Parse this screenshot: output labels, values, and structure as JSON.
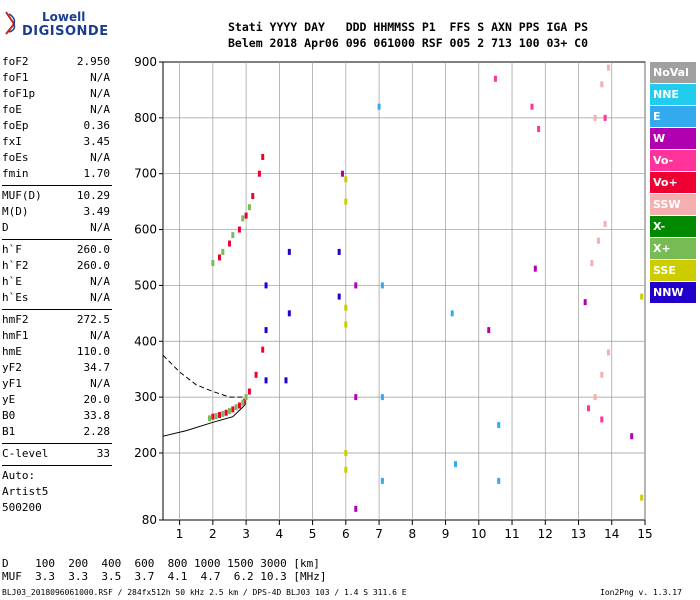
{
  "logo": {
    "line1": "Lowell",
    "line2": "DIGISONDE"
  },
  "header": {
    "labels": "Stati YYYY DAY   DDD HHMMSS P1  FFS S AXN PPS IGA PS",
    "values": "Belem 2018 Apr06 096 061000 RSF 005 2 713 100 03+ C0"
  },
  "params": {
    "group1": [
      {
        "name": "foF2",
        "value": "2.950"
      },
      {
        "name": "foF1",
        "value": "N/A"
      },
      {
        "name": "foF1p",
        "value": "N/A"
      },
      {
        "name": "foE",
        "value": "N/A"
      },
      {
        "name": "foEp",
        "value": "0.36"
      },
      {
        "name": "fxI",
        "value": "3.45"
      },
      {
        "name": "foEs",
        "value": "N/A"
      },
      {
        "name": "fmin",
        "value": "1.70"
      }
    ],
    "group2": [
      {
        "name": "MUF(D)",
        "value": "10.29"
      },
      {
        "name": "M(D)",
        "value": "3.49"
      },
      {
        "name": "D",
        "value": "N/A"
      }
    ],
    "group3": [
      {
        "name": "h`F",
        "value": "260.0"
      },
      {
        "name": "h`F2",
        "value": "260.0"
      },
      {
        "name": "h`E",
        "value": "N/A"
      },
      {
        "name": "h`Es",
        "value": "N/A"
      }
    ],
    "group4": [
      {
        "name": "hmF2",
        "value": "272.5"
      },
      {
        "name": "hmF1",
        "value": "N/A"
      },
      {
        "name": "hmE",
        "value": "110.0"
      },
      {
        "name": "yF2",
        "value": "34.7"
      },
      {
        "name": "yF1",
        "value": "N/A"
      },
      {
        "name": "yE",
        "value": "20.0"
      },
      {
        "name": "B0",
        "value": "33.8"
      },
      {
        "name": "B1",
        "value": "2.28"
      }
    ],
    "group5": [
      {
        "name": "C-level",
        "value": "33"
      }
    ],
    "group6": [
      {
        "name": "Auto:",
        "value": ""
      },
      {
        "name": "Artist5",
        "value": ""
      },
      {
        "name": "500200",
        "value": ""
      }
    ]
  },
  "legend": [
    {
      "label": "NoVal",
      "color": "#a0a0a0"
    },
    {
      "label": "NNE",
      "color": "#22ccee"
    },
    {
      "label": "E",
      "color": "#33aaee"
    },
    {
      "label": "W",
      "color": "#b000b0"
    },
    {
      "label": "Vo-",
      "color": "#ff3399"
    },
    {
      "label": "Vo+",
      "color": "#ee0033"
    },
    {
      "label": "SSW",
      "color": "#f4b0b0"
    },
    {
      "label": "X-",
      "color": "#008800"
    },
    {
      "label": "X+",
      "color": "#77bb55"
    },
    {
      "label": "SSE",
      "color": "#cccc00"
    },
    {
      "label": "NNW",
      "color": "#2200cc"
    }
  ],
  "dm_table": {
    "d_row": "D    100  200  400  600  800 1000 1500 3000 [km]",
    "muf_row": "MUF  3.3  3.3  3.5  3.7  4.1  4.7  6.2 10.3 [MHz]"
  },
  "footer": {
    "left": "BLJ03_2018096061000.RSF / 284fx512h 50 kHz 2.5 km / DPS-4D BLJ03 103 / 1.4 S 311.6 E",
    "right": "Ion2Png v. 1.3.17"
  },
  "chart_data": {
    "type": "scatter",
    "title": "",
    "xlabel": "",
    "ylabel": "",
    "xlim": [
      0.5,
      15
    ],
    "ylim": [
      80,
      900
    ],
    "x_ticks": [
      1,
      2,
      3,
      4,
      5,
      6,
      7,
      8,
      9,
      10,
      11,
      12,
      13,
      14,
      15
    ],
    "y_ticks": [
      80,
      200,
      300,
      400,
      500,
      600,
      700,
      800,
      900
    ],
    "x_unit": "MHz",
    "y_unit": "km",
    "grid": true,
    "traces": [
      {
        "name": "Vo+",
        "color": "#ee0033",
        "points": [
          [
            2.0,
            265
          ],
          [
            2.2,
            268
          ],
          [
            2.4,
            272
          ],
          [
            2.6,
            278
          ],
          [
            2.8,
            285
          ],
          [
            2.95,
            292
          ],
          [
            3.1,
            310
          ],
          [
            3.3,
            340
          ],
          [
            3.5,
            385
          ]
        ]
      },
      {
        "name": "X+",
        "color": "#77bb55",
        "points": [
          [
            1.9,
            262
          ],
          [
            2.1,
            266
          ],
          [
            2.3,
            270
          ],
          [
            2.5,
            275
          ],
          [
            2.7,
            282
          ],
          [
            2.9,
            290
          ],
          [
            3.0,
            300
          ]
        ]
      },
      {
        "name": "Vo+",
        "color": "#ee0033",
        "points": [
          [
            2.2,
            550
          ],
          [
            2.5,
            575
          ],
          [
            2.8,
            600
          ],
          [
            3.0,
            625
          ],
          [
            3.2,
            660
          ],
          [
            3.4,
            700
          ],
          [
            3.5,
            730
          ]
        ]
      },
      {
        "name": "X+",
        "color": "#77bb55",
        "points": [
          [
            2.0,
            540
          ],
          [
            2.3,
            560
          ],
          [
            2.6,
            590
          ],
          [
            2.9,
            620
          ],
          [
            3.1,
            640
          ]
        ]
      },
      {
        "name": "SSW",
        "color": "#f4b0b0",
        "points": [
          [
            13.5,
            800
          ],
          [
            13.7,
            860
          ],
          [
            13.9,
            890
          ],
          [
            13.4,
            540
          ],
          [
            13.6,
            580
          ],
          [
            13.8,
            610
          ],
          [
            13.5,
            300
          ],
          [
            13.7,
            340
          ],
          [
            13.9,
            380
          ]
        ]
      },
      {
        "name": "NNW",
        "color": "#2200cc",
        "points": [
          [
            3.6,
            330
          ],
          [
            3.6,
            420
          ],
          [
            3.6,
            500
          ],
          [
            4.2,
            330
          ],
          [
            4.3,
            450
          ],
          [
            4.3,
            560
          ],
          [
            5.8,
            480
          ],
          [
            5.8,
            560
          ]
        ]
      },
      {
        "name": "SSE",
        "color": "#cccc00",
        "points": [
          [
            6.0,
            170
          ],
          [
            6.0,
            200
          ],
          [
            6.0,
            430
          ],
          [
            6.0,
            460
          ],
          [
            6.0,
            650
          ],
          [
            6.0,
            690
          ],
          [
            14.9,
            120
          ],
          [
            14.9,
            480
          ]
        ]
      },
      {
        "name": "E",
        "color": "#33aaee",
        "points": [
          [
            7.1,
            150
          ],
          [
            7.1,
            300
          ],
          [
            7.1,
            500
          ],
          [
            7.0,
            820
          ],
          [
            9.3,
            180
          ],
          [
            9.2,
            450
          ],
          [
            10.6,
            150
          ],
          [
            10.6,
            250
          ]
        ]
      },
      {
        "name": "W",
        "color": "#b000b0",
        "points": [
          [
            6.3,
            100
          ],
          [
            6.3,
            300
          ],
          [
            6.3,
            500
          ],
          [
            5.9,
            700
          ],
          [
            10.3,
            420
          ],
          [
            11.7,
            530
          ],
          [
            13.2,
            470
          ],
          [
            14.6,
            230
          ]
        ]
      },
      {
        "name": "Vo-",
        "color": "#ff3399",
        "points": [
          [
            11.6,
            820
          ],
          [
            11.8,
            780
          ],
          [
            13.3,
            280
          ],
          [
            13.7,
            260
          ],
          [
            13.8,
            800
          ],
          [
            10.5,
            870
          ]
        ]
      }
    ],
    "model_curves": [
      {
        "style": "dashed",
        "points": [
          [
            0.5,
            375
          ],
          [
            1.0,
            345
          ],
          [
            1.5,
            322
          ],
          [
            2.0,
            310
          ],
          [
            2.5,
            300
          ],
          [
            3.0,
            300
          ]
        ]
      },
      {
        "style": "solid",
        "points": [
          [
            0.5,
            230
          ],
          [
            1.2,
            240
          ],
          [
            2.0,
            255
          ],
          [
            2.6,
            265
          ],
          [
            2.95,
            285
          ],
          [
            3.0,
            290
          ]
        ]
      }
    ]
  }
}
